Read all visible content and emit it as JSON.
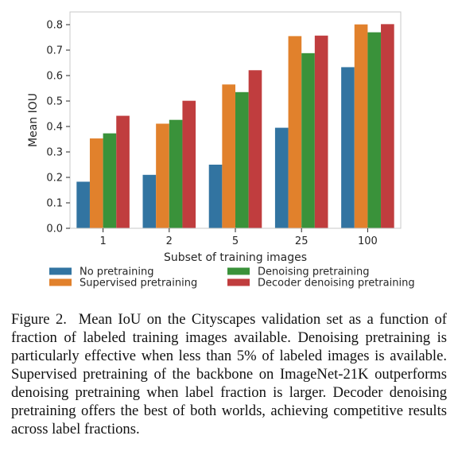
{
  "chart_data": {
    "type": "bar",
    "xlabel": "Subset of training images",
    "ylabel": "Mean IOU",
    "categories": [
      "1",
      "2",
      "5",
      "25",
      "100"
    ],
    "ylim": [
      0,
      0.85
    ],
    "yticks": [
      "0.0",
      "0.1",
      "0.2",
      "0.3",
      "0.4",
      "0.5",
      "0.6",
      "0.7",
      "0.8"
    ],
    "grid": false,
    "legend_position": "bottom",
    "series": [
      {
        "name": "No pretraining",
        "color": "#3274a1",
        "values": [
          0.183,
          0.21,
          0.25,
          0.395,
          0.633
        ]
      },
      {
        "name": "Supervised pretraining",
        "color": "#e1812c",
        "values": [
          0.353,
          0.411,
          0.565,
          0.755,
          0.801
        ]
      },
      {
        "name": "Denoising pretraining",
        "color": "#3a923a",
        "values": [
          0.373,
          0.426,
          0.535,
          0.688,
          0.77
        ]
      },
      {
        "name": "Decoder denoising pretraining",
        "color": "#c03d3e",
        "values": [
          0.442,
          0.501,
          0.621,
          0.757,
          0.802
        ]
      }
    ]
  },
  "caption": {
    "label": "Figure 2.",
    "text": "Mean IoU on the Cityscapes validation set as a function of fraction of labeled training images available. Denoising pretraining is particularly effective when less than 5% of labeled images is available. Supervised pretraining of the backbone on ImageNet-21K outperforms denoising pretraining when label fraction is larger. Decoder denoising pretraining offers the best of both worlds, achieving competitive results across label fractions."
  }
}
